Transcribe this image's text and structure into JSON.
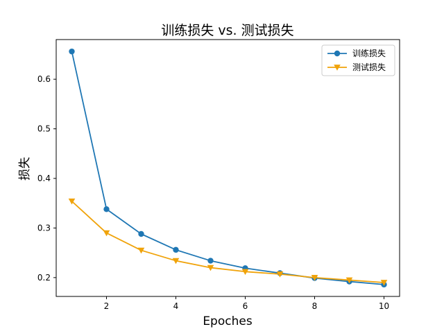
{
  "chart_data": {
    "type": "line",
    "title": "训练损失 vs. 测试损失",
    "xlabel": "Epoches",
    "ylabel": "损失",
    "x": [
      1,
      2,
      3,
      4,
      5,
      6,
      7,
      8,
      9,
      10
    ],
    "xlim": [
      0.55,
      10.45
    ],
    "ylim": [
      0.162,
      0.68
    ],
    "xticks": [
      2,
      4,
      6,
      8,
      10
    ],
    "yticks": [
      0.2,
      0.3,
      0.4,
      0.5,
      0.6
    ],
    "grid": false,
    "legend_position": "top-right",
    "series": [
      {
        "name": "训练损失",
        "color": "#1f77b4",
        "marker": "circle",
        "values": [
          0.656,
          0.338,
          0.288,
          0.256,
          0.234,
          0.219,
          0.209,
          0.199,
          0.192,
          0.186
        ]
      },
      {
        "name": "测试损失",
        "color": "#f0a30a",
        "marker": "triangle-down",
        "values": [
          0.354,
          0.29,
          0.255,
          0.234,
          0.22,
          0.212,
          0.207,
          0.2,
          0.195,
          0.19
        ]
      }
    ]
  }
}
